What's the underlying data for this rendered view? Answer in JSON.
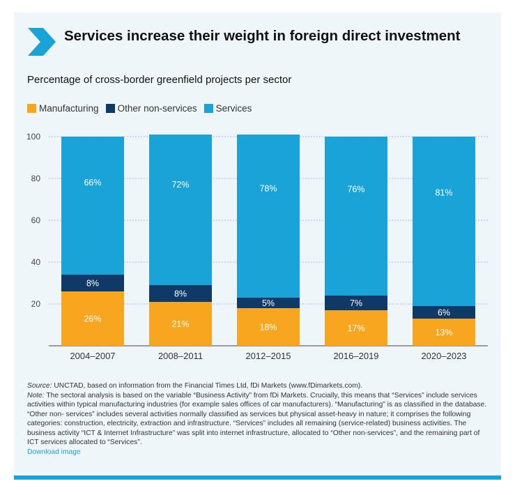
{
  "header": {
    "title": "Services increase their weight in foreign direct investment",
    "subtitle": "Percentage of cross-border greenfield projects per sector"
  },
  "legend": {
    "items": [
      {
        "label": "Manufacturing",
        "color": "#f8a620"
      },
      {
        "label": "Other non-services",
        "color": "#0f3a68"
      },
      {
        "label": "Services",
        "color": "#1aa3d7"
      }
    ]
  },
  "chart_data": {
    "type": "bar",
    "stacked": true,
    "categories": [
      "2004–2007",
      "2008–2011",
      "2012–2015",
      "2016–2019",
      "2020–2023"
    ],
    "series": [
      {
        "name": "Manufacturing",
        "values": [
          26,
          21,
          18,
          17,
          13
        ],
        "labels": [
          "26%",
          "21%",
          "18%",
          "17%",
          "13%"
        ],
        "color": "#f8a620"
      },
      {
        "name": "Other non-services",
        "values": [
          8,
          8,
          5,
          7,
          6
        ],
        "labels": [
          "8%",
          "8%",
          "5%",
          "7%",
          "6%"
        ],
        "color": "#0f3a68"
      },
      {
        "name": "Services",
        "values": [
          66,
          72,
          78,
          76,
          81
        ],
        "labels": [
          "66%",
          "72%",
          "78%",
          "76%",
          "81%"
        ],
        "color": "#1aa3d7"
      }
    ],
    "ylim": [
      0,
      100
    ],
    "yticks": [
      20,
      40,
      60,
      80,
      100
    ],
    "grid": true,
    "legend_position": "top-left"
  },
  "notes": {
    "source_label": "Source:",
    "source_text": "UNCTAD, based on information from the Financial Times Ltd, fDi Markets (www.fDimarkets.com).",
    "note_label": "Note:",
    "note_text": "The sectoral analysis is based on the variable “Business Activity” from fDi Markets. Crucially, this means that “Services” include services activities within typical manufacturing industries (for example sales offices of car manufacturers). “Manufacturing” is as classified in the database. “Other non- services” includes several activities normally classified as services but physical asset-heavy in nature; it comprises the following categories: construction, electricity, extraction and infrastructure. “Services” includes all remaining (service-related) business activities. The business activity “ICT & Internet Infrastructure” was split into internet infrastructure, allocated to “Other non-services”, and the remaining part of ICT services allocated to “Services”.",
    "download_link": "Download image"
  }
}
